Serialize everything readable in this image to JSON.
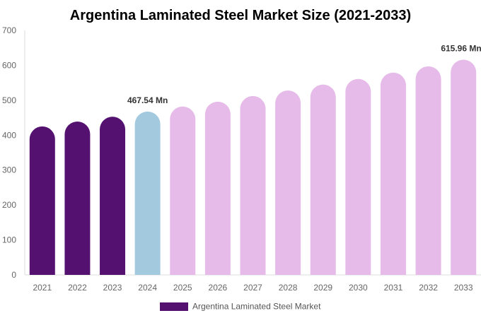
{
  "chart_data": {
    "type": "bar",
    "title": "Argentina Laminated Steel Market Size (2021-2033)",
    "categories": [
      "2021",
      "2022",
      "2023",
      "2024",
      "2025",
      "2026",
      "2027",
      "2028",
      "2029",
      "2030",
      "2031",
      "2032",
      "2033"
    ],
    "series": [
      {
        "name": "Argentina Laminated Steel Market",
        "values": [
          425,
          439,
          453,
          467.54,
          482,
          496,
          512,
          528,
          545,
          561,
          579,
          597,
          615.96
        ]
      }
    ],
    "ylim": [
      0,
      700
    ],
    "yticks": [
      "0",
      "100",
      "200",
      "300",
      "400",
      "500",
      "600",
      "700"
    ],
    "data_labels": [
      {
        "index": 3,
        "text": "467.54 Mn"
      },
      {
        "index": 12,
        "text": "615.96 Mn"
      }
    ],
    "colors": {
      "historical": "#541170",
      "current": "#a3c9df",
      "forecast": "#e6bbe9"
    },
    "color_groups": [
      "historical",
      "historical",
      "historical",
      "current",
      "forecast",
      "forecast",
      "forecast",
      "forecast",
      "forecast",
      "forecast",
      "forecast",
      "forecast",
      "forecast"
    ],
    "grid": false,
    "legend_position": "bottom"
  }
}
